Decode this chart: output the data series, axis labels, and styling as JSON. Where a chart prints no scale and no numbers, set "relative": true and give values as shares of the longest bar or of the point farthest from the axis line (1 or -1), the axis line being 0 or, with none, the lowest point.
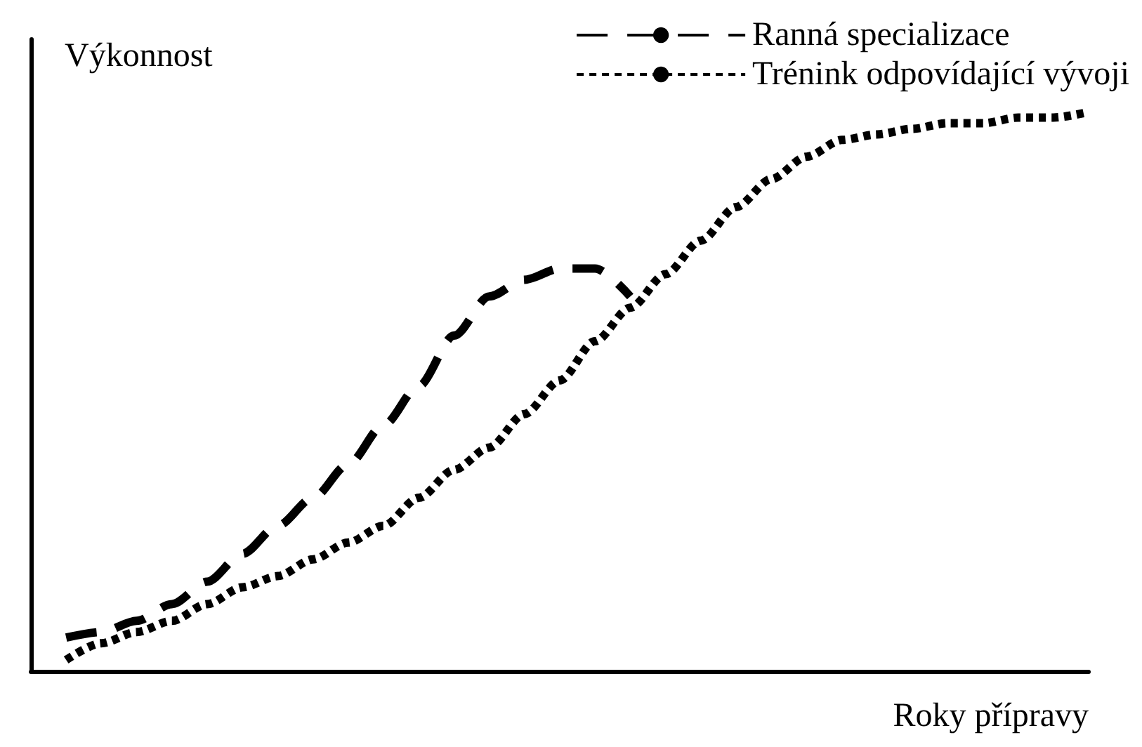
{
  "chart_data": {
    "type": "line",
    "relative": true,
    "xlabel": "Roky přípravy",
    "ylabel": "Výkonnost",
    "categories": [
      null,
      null,
      null,
      null,
      null,
      null,
      null,
      null,
      null,
      null,
      null,
      null,
      null,
      null,
      null,
      null,
      null,
      null,
      null,
      null,
      null,
      null,
      null,
      null,
      null,
      null,
      null,
      null,
      null,
      null,
      null
    ],
    "series": [
      {
        "name": "Ranná specializace",
        "color": "#000000",
        "line_style": "dashed",
        "values": [
          null,
          0.06,
          0.07,
          0.09,
          0.12,
          0.16,
          0.21,
          0.26,
          0.31,
          0.37,
          0.44,
          0.51,
          0.6,
          0.67,
          0.7,
          0.72,
          0.72,
          0.67,
          null,
          null,
          null,
          null,
          null,
          null,
          null,
          null,
          null,
          null,
          null,
          null,
          null
        ]
      },
      {
        "name": "Trénink odpovídající vývoji",
        "color": "#000000",
        "line_style": "dotted",
        "values": [
          null,
          0.02,
          0.05,
          0.07,
          0.09,
          0.12,
          0.15,
          0.17,
          0.2,
          0.23,
          0.26,
          0.31,
          0.36,
          0.4,
          0.46,
          0.52,
          0.59,
          0.65,
          0.71,
          0.77,
          0.83,
          0.88,
          0.92,
          0.95,
          0.96,
          0.97,
          0.98,
          0.98,
          0.99,
          0.99,
          1
        ]
      }
    ],
    "legend": "top right",
    "grid": false,
    "marker": "none"
  }
}
